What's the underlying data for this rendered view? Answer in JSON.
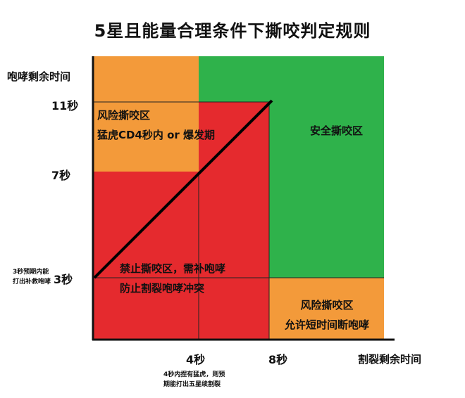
{
  "title": "5星且能量合理条件下撕咬判定规则",
  "y_axis_title": "咆哮剩余时间",
  "x_axis_title": "割裂剩余时间",
  "y_ticks": {
    "t11": "11秒",
    "t7": "7秒",
    "t3": "3秒"
  },
  "x_ticks": {
    "t4": "4秒",
    "t8": "8秒"
  },
  "notes": {
    "y3_line1": "3秒预期内能",
    "y3_line2": "打出补救咆哮",
    "x4_line1": "4秒内捏有猛虎，则预",
    "x4_line2": "期能打出五星续割裂"
  },
  "zones": {
    "risk_top": {
      "line1": "风险撕咬区",
      "line2": "猛虎CD4秒内 or 爆发期"
    },
    "safe": {
      "label": "安全撕咬区"
    },
    "forbidden": {
      "line1": "禁止撕咬区，需补咆哮",
      "line2": "防止割裂咆哮冲突"
    },
    "risk_bottom": {
      "line1": "风险撕咬区",
      "line2": "允许短时间断咆哮"
    }
  },
  "colors": {
    "orange": "#f39a3a",
    "green": "#2fb24b",
    "red": "#e52a2e",
    "axis": "#111111"
  }
}
